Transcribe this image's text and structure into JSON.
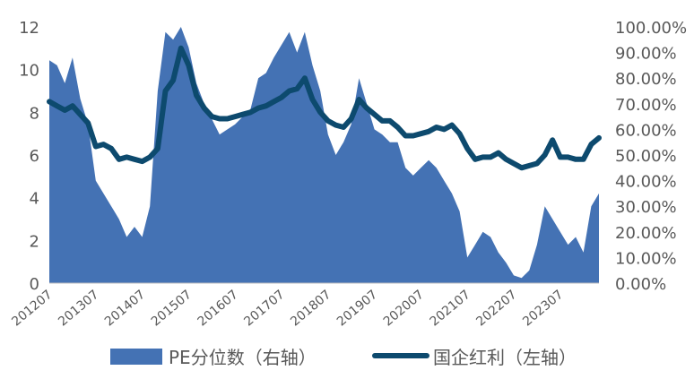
{
  "chart_data": {
    "type": "area",
    "x_labels": [
      "201207",
      "201307",
      "201407",
      "201507",
      "201607",
      "201707",
      "201807",
      "201907",
      "202007",
      "202107",
      "202207",
      "202307"
    ],
    "left_axis": {
      "ticks": [
        "12",
        "10",
        "8",
        "6",
        "4",
        "2",
        "0"
      ],
      "ylim": [
        0,
        12
      ]
    },
    "right_axis": {
      "ticks": [
        "100.00%",
        "90.00%",
        "80.00%",
        "70.00%",
        "60.00%",
        "50.00%",
        "40.00%",
        "30.00%",
        "20.00%",
        "10.00%",
        "0.00%"
      ],
      "ylim": [
        0,
        100
      ]
    },
    "series": [
      {
        "name": "PE分位数（右轴）",
        "kind": "area",
        "axis": "right",
        "color": "#4472b4",
        "points": [
          [
            "2012-07",
            87
          ],
          [
            "2012-09",
            85
          ],
          [
            "2012-11",
            78
          ],
          [
            "2013-01",
            88
          ],
          [
            "2013-03",
            72
          ],
          [
            "2013-05",
            62
          ],
          [
            "2013-07",
            40
          ],
          [
            "2013-09",
            35
          ],
          [
            "2013-11",
            30
          ],
          [
            "2014-01",
            25
          ],
          [
            "2014-03",
            18
          ],
          [
            "2014-05",
            22
          ],
          [
            "2014-07",
            18
          ],
          [
            "2014-09",
            30
          ],
          [
            "2014-11",
            75
          ],
          [
            "2015-01",
            98
          ],
          [
            "2015-03",
            95
          ],
          [
            "2015-05",
            100
          ],
          [
            "2015-07",
            92
          ],
          [
            "2015-09",
            78
          ],
          [
            "2015-11",
            70
          ],
          [
            "2016-01",
            64
          ],
          [
            "2016-03",
            58
          ],
          [
            "2016-05",
            60
          ],
          [
            "2016-07",
            62
          ],
          [
            "2016-09",
            65
          ],
          [
            "2016-11",
            68
          ],
          [
            "2017-01",
            80
          ],
          [
            "2017-03",
            82
          ],
          [
            "2017-05",
            88
          ],
          [
            "2017-07",
            93
          ],
          [
            "2017-09",
            98
          ],
          [
            "2017-11",
            90
          ],
          [
            "2018-01",
            98
          ],
          [
            "2018-03",
            85
          ],
          [
            "2018-05",
            75
          ],
          [
            "2018-07",
            58
          ],
          [
            "2018-09",
            50
          ],
          [
            "2018-11",
            55
          ],
          [
            "2019-01",
            62
          ],
          [
            "2019-03",
            80
          ],
          [
            "2019-05",
            70
          ],
          [
            "2019-07",
            60
          ],
          [
            "2019-09",
            58
          ],
          [
            "2019-11",
            55
          ],
          [
            "2020-01",
            55
          ],
          [
            "2020-03",
            45
          ],
          [
            "2020-05",
            42
          ],
          [
            "2020-07",
            45
          ],
          [
            "2020-09",
            48
          ],
          [
            "2020-11",
            45
          ],
          [
            "2021-01",
            40
          ],
          [
            "2021-03",
            35
          ],
          [
            "2021-05",
            28
          ],
          [
            "2021-07",
            10
          ],
          [
            "2021-09",
            15
          ],
          [
            "2021-11",
            20
          ],
          [
            "2022-01",
            18
          ],
          [
            "2022-03",
            12
          ],
          [
            "2022-05",
            8
          ],
          [
            "2022-07",
            3
          ],
          [
            "2022-09",
            2
          ],
          [
            "2022-11",
            5
          ],
          [
            "2023-01",
            15
          ],
          [
            "2023-03",
            30
          ],
          [
            "2023-05",
            25
          ],
          [
            "2023-07",
            20
          ],
          [
            "2023-09",
            15
          ],
          [
            "2023-11",
            18
          ],
          [
            "2024-01",
            12
          ],
          [
            "2024-03",
            30
          ],
          [
            "2024-05",
            35
          ]
        ]
      },
      {
        "name": "国企红利（左轴）",
        "kind": "line",
        "axis": "left",
        "color": "#0d4a6e",
        "points": [
          [
            "2012-07",
            8.5
          ],
          [
            "2012-09",
            8.3
          ],
          [
            "2012-11",
            8.1
          ],
          [
            "2013-01",
            8.3
          ],
          [
            "2013-03",
            7.9
          ],
          [
            "2013-05",
            7.5
          ],
          [
            "2013-07",
            6.4
          ],
          [
            "2013-09",
            6.5
          ],
          [
            "2013-11",
            6.3
          ],
          [
            "2014-01",
            5.8
          ],
          [
            "2014-03",
            5.9
          ],
          [
            "2014-05",
            5.8
          ],
          [
            "2014-07",
            5.7
          ],
          [
            "2014-09",
            5.9
          ],
          [
            "2014-11",
            6.3
          ],
          [
            "2015-01",
            9.0
          ],
          [
            "2015-03",
            9.5
          ],
          [
            "2015-05",
            11.0
          ],
          [
            "2015-07",
            10.2
          ],
          [
            "2015-09",
            8.8
          ],
          [
            "2015-11",
            8.2
          ],
          [
            "2016-01",
            7.8
          ],
          [
            "2016-03",
            7.7
          ],
          [
            "2016-05",
            7.7
          ],
          [
            "2016-07",
            7.8
          ],
          [
            "2016-09",
            7.9
          ],
          [
            "2016-11",
            8.0
          ],
          [
            "2017-01",
            8.2
          ],
          [
            "2017-03",
            8.3
          ],
          [
            "2017-05",
            8.5
          ],
          [
            "2017-07",
            8.7
          ],
          [
            "2017-09",
            9.0
          ],
          [
            "2017-11",
            9.1
          ],
          [
            "2018-01",
            9.6
          ],
          [
            "2018-03",
            8.6
          ],
          [
            "2018-05",
            8.0
          ],
          [
            "2018-07",
            7.6
          ],
          [
            "2018-09",
            7.4
          ],
          [
            "2018-11",
            7.3
          ],
          [
            "2019-01",
            7.7
          ],
          [
            "2019-03",
            8.6
          ],
          [
            "2019-05",
            8.2
          ],
          [
            "2019-07",
            7.9
          ],
          [
            "2019-09",
            7.6
          ],
          [
            "2019-11",
            7.6
          ],
          [
            "2020-01",
            7.3
          ],
          [
            "2020-03",
            6.9
          ],
          [
            "2020-05",
            6.9
          ],
          [
            "2020-07",
            7.0
          ],
          [
            "2020-09",
            7.1
          ],
          [
            "2020-11",
            7.3
          ],
          [
            "2021-01",
            7.2
          ],
          [
            "2021-03",
            7.4
          ],
          [
            "2021-05",
            7.0
          ],
          [
            "2021-07",
            6.3
          ],
          [
            "2021-09",
            5.8
          ],
          [
            "2021-11",
            5.9
          ],
          [
            "2022-01",
            5.9
          ],
          [
            "2022-03",
            6.1
          ],
          [
            "2022-05",
            5.8
          ],
          [
            "2022-07",
            5.6
          ],
          [
            "2022-09",
            5.4
          ],
          [
            "2022-11",
            5.5
          ],
          [
            "2023-01",
            5.6
          ],
          [
            "2023-03",
            6.0
          ],
          [
            "2023-05",
            6.7
          ],
          [
            "2023-07",
            5.9
          ],
          [
            "2023-09",
            5.9
          ],
          [
            "2023-11",
            5.8
          ],
          [
            "2024-01",
            5.8
          ],
          [
            "2024-03",
            6.5
          ],
          [
            "2024-05",
            6.8
          ]
        ]
      }
    ],
    "legend_position": "bottom",
    "grid": false
  }
}
